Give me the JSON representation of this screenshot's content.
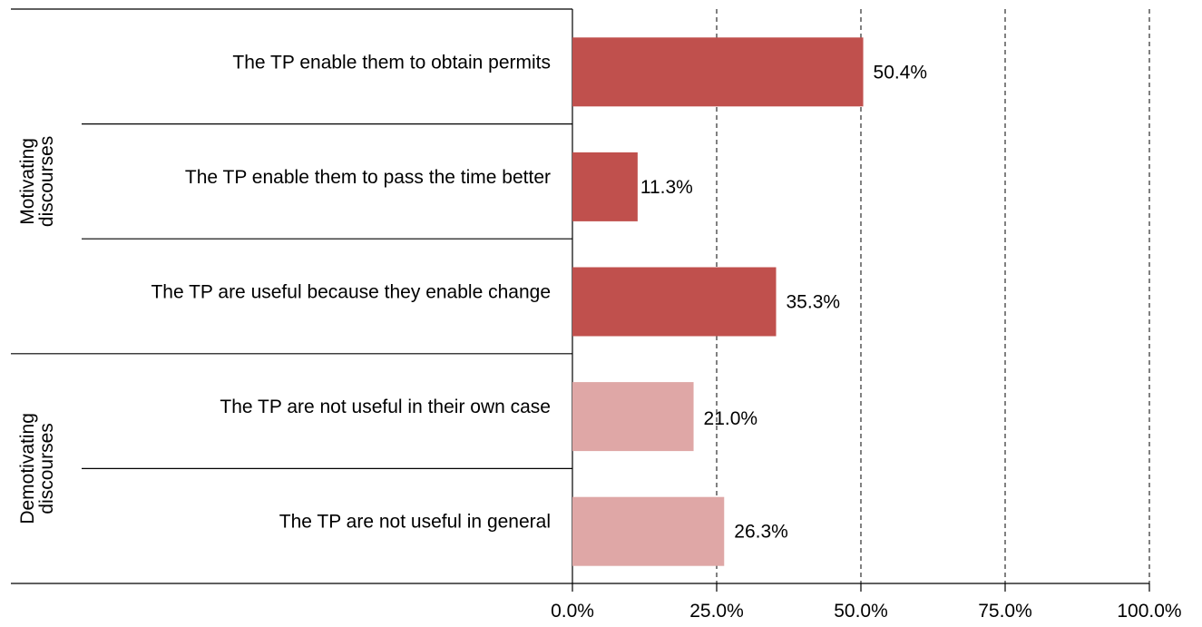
{
  "colors": {
    "motivating": "#c0504d",
    "demotivating": "#dfa7a6",
    "axis": "#000000"
  },
  "chart_data": {
    "type": "bar",
    "orientation": "horizontal",
    "categories": [
      "The TP enable them to obtain permits",
      "The TP enable them to pass the time better",
      "The TP are useful because they enable change",
      "The TP are not useful in their own case",
      "The TP are not useful in general"
    ],
    "values": [
      50.4,
      11.3,
      35.3,
      21.0,
      26.3
    ],
    "value_labels": [
      "50.4%",
      "11.3%",
      "35.3%",
      "21.0%",
      "26.3%"
    ],
    "bar_groups": [
      "motivating",
      "motivating",
      "motivating",
      "demotivating",
      "demotivating"
    ],
    "groups": [
      {
        "key": "motivating",
        "label_lines": [
          "Motivating",
          "discourses"
        ],
        "count": 3
      },
      {
        "key": "demotivating",
        "label_lines": [
          "Demotivating",
          "discourses"
        ],
        "count": 2
      }
    ],
    "xlim": [
      0,
      100
    ],
    "xticks": [
      0,
      25,
      50,
      75,
      100
    ],
    "xtick_labels": [
      "0.0%",
      "25.0%",
      "50.0%",
      "75.0%",
      "100.0%"
    ],
    "grid": "vertical dashed",
    "title": "",
    "xlabel": "",
    "ylabel": ""
  }
}
